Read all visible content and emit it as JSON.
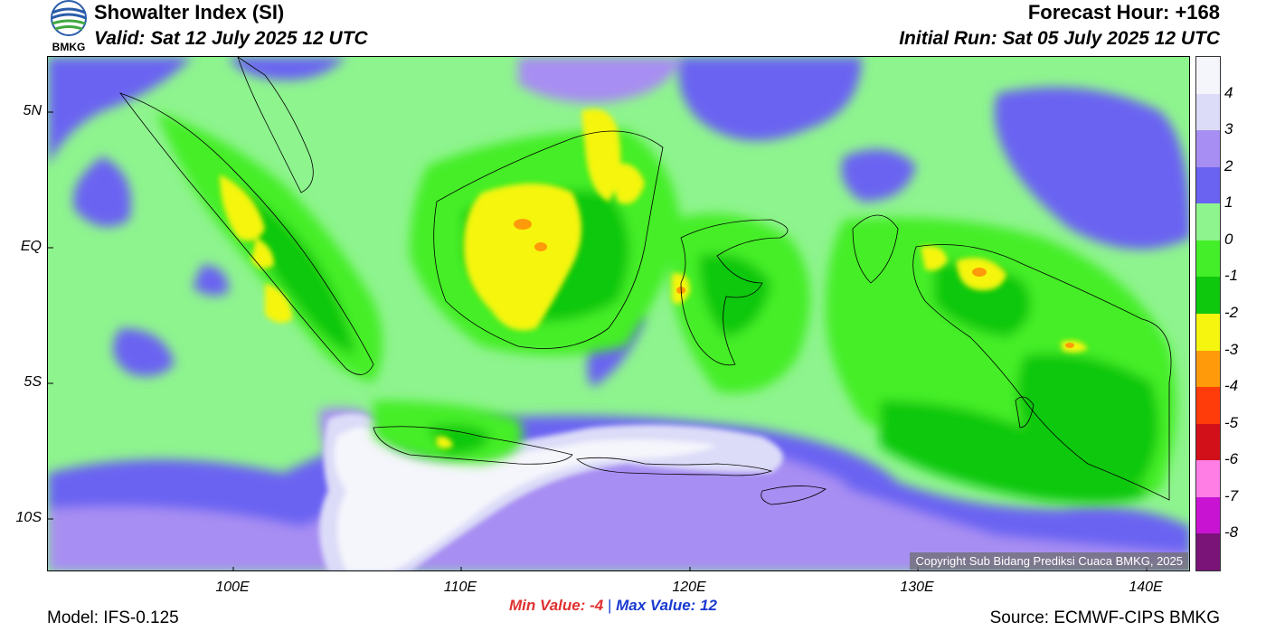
{
  "header": {
    "agency_logo_text": "BMKG",
    "title": "Showalter Index (SI)",
    "valid": "Valid: Sat 12 July 2025 12 UTC",
    "forecast_hour": "Forecast Hour: +168",
    "initial_run": "Initial Run: Sat 05 July 2025 12 UTC"
  },
  "map": {
    "lat_labels": [
      "5N",
      "EQ",
      "5S",
      "10S"
    ],
    "lon_labels": [
      "100E",
      "110E",
      "120E",
      "130E",
      "140E"
    ],
    "copyright": "Copyright Sub Bidang Prediksi Cuaca BMKG, 2025",
    "regions": [
      "Sumatra",
      "Malay Peninsula",
      "Borneo",
      "Java",
      "Lesser Sunda Islands",
      "Sulawesi",
      "Maluku",
      "New Guinea",
      "Timor"
    ]
  },
  "legend": {
    "labels": [
      "4",
      "3",
      "2",
      "1",
      "0",
      "-1",
      "-2",
      "-3",
      "-4",
      "-5",
      "-6",
      "-7",
      "-8"
    ],
    "colors": [
      "#f5f5fc",
      "#dcdcf8",
      "#a78ef2",
      "#6a63f2",
      "#8ef48e",
      "#44ee28",
      "#0ec80e",
      "#f5f50f",
      "#ff9a0a",
      "#ff3c0a",
      "#d2101a",
      "#ff7ee6",
      "#c814d2",
      "#7a1478"
    ]
  },
  "stats": {
    "min_label": "Min Value:",
    "min_value": "-4",
    "separator": "|",
    "max_label": "Max Value:",
    "max_value": "12"
  },
  "footer": {
    "model": "Model: IFS-0.125",
    "source": "Source: ECMWF-CIPS BMKG"
  }
}
